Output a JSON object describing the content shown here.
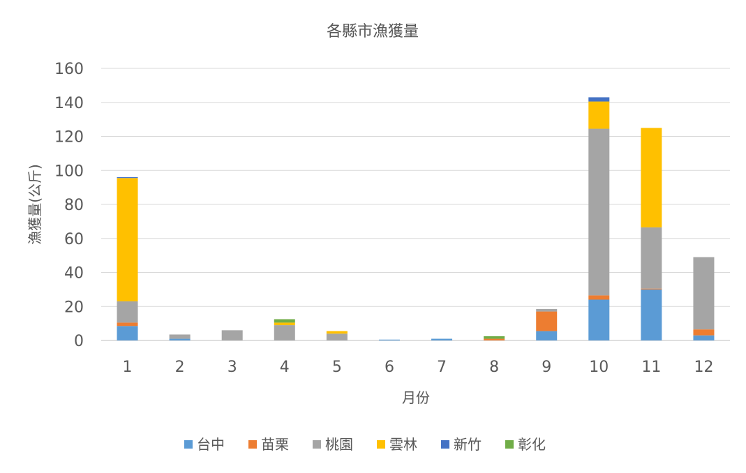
{
  "chart_data": {
    "type": "bar",
    "stacked": true,
    "title": "各縣市漁獲量",
    "xlabel": "月份",
    "ylabel": "漁獲量(公斤)",
    "categories": [
      "1",
      "2",
      "3",
      "4",
      "5",
      "6",
      "7",
      "8",
      "9",
      "10",
      "11",
      "12"
    ],
    "ylim": [
      0,
      160
    ],
    "yticks": [
      0,
      20,
      40,
      60,
      80,
      100,
      120,
      140,
      160
    ],
    "grid": true,
    "legend_position": "bottom",
    "series": [
      {
        "name": "台中",
        "color": "#5B9BD5",
        "values": [
          8.5,
          1,
          0,
          0,
          0,
          0.5,
          1,
          0,
          5.5,
          24,
          30,
          3
        ]
      },
      {
        "name": "苗栗",
        "color": "#ED7D31",
        "values": [
          2,
          0,
          0,
          0,
          0,
          0,
          0,
          1,
          11.5,
          2.5,
          0.5,
          3.5
        ]
      },
      {
        "name": "桃園",
        "color": "#A5A5A5",
        "values": [
          12.5,
          2.5,
          6,
          9,
          4,
          0,
          0,
          0,
          1.5,
          98,
          36,
          42.5
        ]
      },
      {
        "name": "雲林",
        "color": "#FFC000",
        "values": [
          72.5,
          0,
          0,
          1.5,
          1.5,
          0,
          0,
          0,
          0,
          16,
          58.5,
          0
        ]
      },
      {
        "name": "新竹",
        "color": "#4472C4",
        "values": [
          0.5,
          0,
          0,
          0,
          0,
          0,
          0,
          0,
          0,
          2.5,
          0,
          0
        ]
      },
      {
        "name": "彰化",
        "color": "#70AD47",
        "values": [
          0,
          0,
          0,
          2,
          0,
          0,
          0,
          1.5,
          0,
          0,
          0,
          0
        ]
      }
    ]
  }
}
